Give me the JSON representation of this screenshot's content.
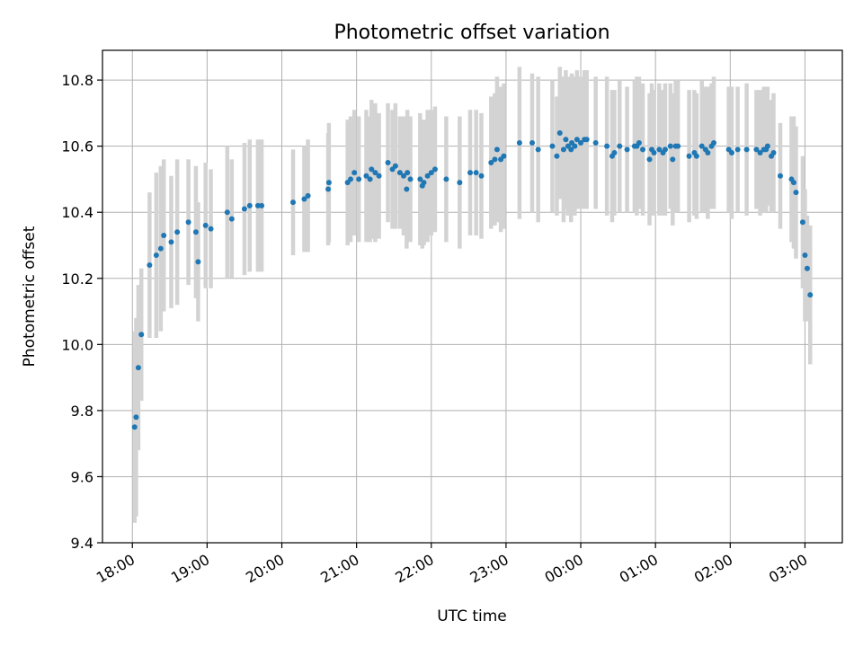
{
  "chart_data": {
    "type": "scatter",
    "title": "Photometric offset variation",
    "xlabel": "UTC time",
    "ylabel": "Photometric offset",
    "x_unit": "UTC time, hours from 18:00",
    "xlim": [
      -0.4,
      9.5
    ],
    "ylim": [
      9.4,
      10.89
    ],
    "x_ticks": [
      0,
      1,
      2,
      3,
      4,
      5,
      6,
      7,
      8,
      9
    ],
    "x_tick_labels": [
      "18:00",
      "19:00",
      "20:00",
      "21:00",
      "22:00",
      "23:00",
      "00:00",
      "01:00",
      "02:00",
      "03:00"
    ],
    "y_ticks": [
      9.4,
      9.6,
      9.8,
      10.0,
      10.2,
      10.4,
      10.6,
      10.8
    ],
    "y_tick_labels": [
      "9.4",
      "9.6",
      "9.8",
      "10.0",
      "10.2",
      "10.4",
      "10.6",
      "10.8"
    ],
    "grid": true,
    "colors": {
      "points": "#1f77b4",
      "errorbars": "#d3d3d3",
      "grid": "#b0b0b0",
      "axes": "#000000"
    },
    "series": [
      {
        "x": [
          0.03,
          0.05,
          0.08,
          0.12,
          0.23,
          0.32,
          0.38,
          0.42,
          0.52,
          0.6,
          0.75,
          0.85,
          0.88,
          0.98,
          1.05,
          1.27,
          1.33,
          1.5,
          1.57,
          1.68,
          1.73,
          2.15,
          2.3,
          2.35,
          2.62,
          2.63,
          2.88,
          2.92,
          2.97,
          3.03,
          3.13,
          3.18,
          3.2,
          3.25,
          3.3,
          3.42,
          3.48,
          3.52,
          3.58,
          3.63,
          3.67,
          3.68,
          3.72,
          3.85,
          3.88,
          3.9,
          3.95,
          4.0,
          4.05,
          4.2,
          4.38,
          4.52,
          4.6,
          4.67,
          4.8,
          4.85,
          4.88,
          4.93,
          4.97,
          5.18,
          5.35,
          5.43,
          5.62,
          5.68,
          5.72,
          5.77,
          5.8,
          5.83,
          5.87,
          5.88,
          5.92,
          5.95,
          6.0,
          6.05,
          6.08,
          6.2,
          6.35,
          6.42,
          6.45,
          6.52,
          6.62,
          6.72,
          6.75,
          6.78,
          6.83,
          6.92,
          6.95,
          6.98,
          7.05,
          7.1,
          7.13,
          7.2,
          7.23,
          7.27,
          7.3,
          7.45,
          7.52,
          7.55,
          7.62,
          7.67,
          7.7,
          7.75,
          7.78,
          7.98,
          8.02,
          8.1,
          8.22,
          8.35,
          8.4,
          8.45,
          8.48,
          8.5,
          8.55,
          8.58,
          8.67,
          8.82,
          8.85,
          8.88,
          8.97,
          9.0,
          9.03,
          9.07
        ],
        "y": [
          9.75,
          9.78,
          9.93,
          10.03,
          10.24,
          10.27,
          10.29,
          10.33,
          10.31,
          10.34,
          10.37,
          10.34,
          10.25,
          10.36,
          10.35,
          10.4,
          10.38,
          10.41,
          10.42,
          10.42,
          10.42,
          10.43,
          10.44,
          10.45,
          10.47,
          10.49,
          10.49,
          10.5,
          10.52,
          10.5,
          10.51,
          10.5,
          10.53,
          10.52,
          10.51,
          10.55,
          10.53,
          10.54,
          10.52,
          10.51,
          10.47,
          10.52,
          10.5,
          10.5,
          10.48,
          10.49,
          10.51,
          10.52,
          10.53,
          10.5,
          10.49,
          10.52,
          10.52,
          10.51,
          10.55,
          10.56,
          10.59,
          10.56,
          10.57,
          10.61,
          10.61,
          10.59,
          10.6,
          10.57,
          10.64,
          10.59,
          10.62,
          10.6,
          10.59,
          10.61,
          10.6,
          10.62,
          10.61,
          10.62,
          10.62,
          10.61,
          10.6,
          10.57,
          10.58,
          10.6,
          10.59,
          10.6,
          10.6,
          10.61,
          10.59,
          10.56,
          10.59,
          10.58,
          10.59,
          10.58,
          10.59,
          10.6,
          10.56,
          10.6,
          10.6,
          10.57,
          10.58,
          10.57,
          10.6,
          10.59,
          10.58,
          10.6,
          10.61,
          10.59,
          10.58,
          10.59,
          10.59,
          10.59,
          10.58,
          10.59,
          10.59,
          10.6,
          10.57,
          10.58,
          10.51,
          10.5,
          10.49,
          10.46,
          10.37,
          10.27,
          10.23,
          10.15
        ],
        "yerr": [
          0.29,
          0.3,
          0.25,
          0.2,
          0.22,
          0.25,
          0.25,
          0.23,
          0.2,
          0.22,
          0.19,
          0.2,
          0.18,
          0.19,
          0.18,
          0.2,
          0.18,
          0.2,
          0.2,
          0.2,
          0.2,
          0.16,
          0.16,
          0.17,
          0.17,
          0.18,
          0.19,
          0.19,
          0.19,
          0.19,
          0.2,
          0.19,
          0.21,
          0.21,
          0.19,
          0.18,
          0.18,
          0.19,
          0.17,
          0.18,
          0.18,
          0.19,
          0.19,
          0.2,
          0.19,
          0.19,
          0.2,
          0.19,
          0.19,
          0.19,
          0.2,
          0.19,
          0.19,
          0.19,
          0.2,
          0.2,
          0.22,
          0.22,
          0.22,
          0.23,
          0.21,
          0.22,
          0.2,
          0.18,
          0.2,
          0.22,
          0.21,
          0.21,
          0.22,
          0.21,
          0.21,
          0.21,
          0.2,
          0.21,
          0.21,
          0.2,
          0.21,
          0.2,
          0.19,
          0.2,
          0.19,
          0.2,
          0.21,
          0.2,
          0.2,
          0.2,
          0.2,
          0.19,
          0.2,
          0.19,
          0.2,
          0.19,
          0.2,
          0.2,
          0.2,
          0.2,
          0.19,
          0.19,
          0.2,
          0.19,
          0.2,
          0.19,
          0.2,
          0.19,
          0.2,
          0.19,
          0.2,
          0.18,
          0.19,
          0.19,
          0.19,
          0.18,
          0.17,
          0.18,
          0.16,
          0.19,
          0.2,
          0.2,
          0.2,
          0.2,
          0.16,
          0.21
        ]
      }
    ]
  }
}
